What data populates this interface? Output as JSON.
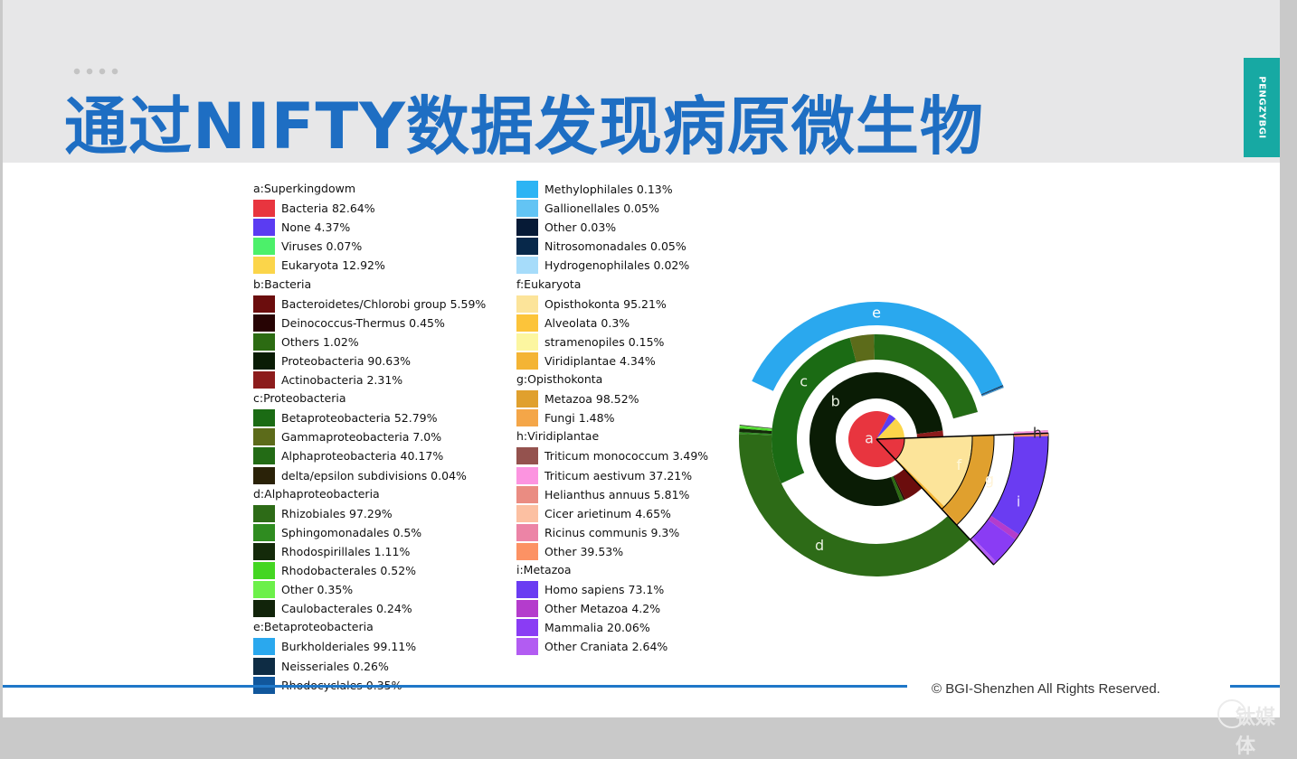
{
  "page": {
    "title": "通过NIFTY数据发现病原微生物",
    "side_tag": "PENGZYBGI",
    "footer": "©  BGI-Shenzhen All Rights Reserved.",
    "watermark": "钛媒体"
  },
  "colors": {
    "title": "#1e6ec3",
    "header_bg": "#e7e7e8",
    "accent_teal": "#17a9a3",
    "rule_blue": "#1f77c8"
  },
  "chart_data": {
    "type": "sunburst",
    "title": "",
    "legend_placement": "left",
    "sections": [
      {
        "key": "a",
        "title": "a:Superkingdowm",
        "items": [
          {
            "name": "Bacteria",
            "value": 82.64,
            "label": "Bacteria 82.64%",
            "color": "#e8353f"
          },
          {
            "name": "None",
            "value": 4.37,
            "label": "None 4.37%",
            "color": "#5b3cf2"
          },
          {
            "name": "Viruses",
            "value": 0.07,
            "label": "Viruses 0.07%",
            "color": "#4cf06a"
          },
          {
            "name": "Eukaryota",
            "value": 12.92,
            "label": "Eukaryota 12.92%",
            "color": "#fbd54a"
          }
        ]
      },
      {
        "key": "b",
        "title": "b:Bacteria",
        "items": [
          {
            "name": "Bacteroidetes/Chlorobi group",
            "value": 5.59,
            "label": "Bacteroidetes/Chlorobi group 5.59%",
            "color": "#6b0d0d"
          },
          {
            "name": "Deinococcus-Thermus",
            "value": 0.45,
            "label": "Deinococcus-Thermus 0.45%",
            "color": "#270404"
          },
          {
            "name": "Others",
            "value": 1.02,
            "label": "Others 1.02%",
            "color": "#2c6b12"
          },
          {
            "name": "Proteobacteria",
            "value": 90.63,
            "label": "Proteobacteria 90.63%",
            "color": "#0a1c05"
          },
          {
            "name": "Actinobacteria",
            "value": 2.31,
            "label": "Actinobacteria 2.31%",
            "color": "#8c1c1c"
          }
        ]
      },
      {
        "key": "c",
        "title": "c:Proteobacteria",
        "items": [
          {
            "name": "Betaproteobacteria",
            "value": 52.79,
            "label": "Betaproteobacteria 52.79%",
            "color": "#1b6b14"
          },
          {
            "name": "Gammaproteobacteria",
            "value": 7.0,
            "label": "Gammaproteobacteria 7.0%",
            "color": "#5c6b1a"
          },
          {
            "name": "Alphaproteobacteria",
            "value": 40.17,
            "label": "Alphaproteobacteria 40.17%",
            "color": "#236b15"
          },
          {
            "name": "delta/epsilon subdivisions",
            "value": 0.04,
            "label": "delta/epsilon subdivisions 0.04%",
            "color": "#2a2208"
          }
        ]
      },
      {
        "key": "d",
        "title": "d:Alphaproteobacteria",
        "items": [
          {
            "name": "Rhizobiales",
            "value": 97.29,
            "label": "Rhizobiales 97.29%",
            "color": "#2d6b17"
          },
          {
            "name": "Sphingomonadales",
            "value": 0.5,
            "label": "Sphingomonadales 0.5%",
            "color": "#2f8c20"
          },
          {
            "name": "Rhodospirillales",
            "value": 1.11,
            "label": "Rhodospirillales 1.11%",
            "color": "#142a0a"
          },
          {
            "name": "Rhodobacterales",
            "value": 0.52,
            "label": "Rhodobacterales 0.52%",
            "color": "#44d622"
          },
          {
            "name": "Other",
            "value": 0.35,
            "label": "Other 0.35%",
            "color": "#6cf04a"
          },
          {
            "name": "Caulobacterales",
            "value": 0.24,
            "label": "Caulobacterales 0.24%",
            "color": "#11240a"
          }
        ]
      },
      {
        "key": "e",
        "title": "e:Betaproteobacteria",
        "items": [
          {
            "name": "Burkholderiales",
            "value": 99.11,
            "label": "Burkholderiales 99.11%",
            "color": "#2aa8ee"
          },
          {
            "name": "Neisseriales",
            "value": 0.26,
            "label": "Neisseriales 0.26%",
            "color": "#0e2c44"
          },
          {
            "name": "Rhodocyclales",
            "value": 0.35,
            "label": "Rhodocyclales 0.35%",
            "color": "#11579c"
          },
          {
            "name": "Methylophilales",
            "value": 0.13,
            "label": "Methylophilales 0.13%",
            "color": "#2cb4f4"
          },
          {
            "name": "Gallionellales",
            "value": 0.05,
            "label": "Gallionellales 0.05%",
            "color": "#63c4f4"
          },
          {
            "name": "Other",
            "value": 0.03,
            "label": "Other 0.03%",
            "color": "#061a36"
          },
          {
            "name": "Nitrosomonadales",
            "value": 0.05,
            "label": "Nitrosomonadales 0.05%",
            "color": "#07284a"
          },
          {
            "name": "Hydrogenophilales",
            "value": 0.02,
            "label": "Hydrogenophilales 0.02%",
            "color": "#a6dcfa"
          }
        ]
      },
      {
        "key": "f",
        "title": "f:Eukaryota",
        "items": [
          {
            "name": "Opisthokonta",
            "value": 95.21,
            "label": "Opisthokonta 95.21%",
            "color": "#fce49a"
          },
          {
            "name": "Alveolata",
            "value": 0.3,
            "label": "Alveolata 0.3%",
            "color": "#fcc43a"
          },
          {
            "name": "stramenopiles",
            "value": 0.15,
            "label": "stramenopiles 0.15%",
            "color": "#fcf6a0"
          },
          {
            "name": "Viridiplantae",
            "value": 4.34,
            "label": "Viridiplantae 4.34%",
            "color": "#f4b434"
          }
        ]
      },
      {
        "key": "g",
        "title": "g:Opisthokonta",
        "items": [
          {
            "name": "Metazoa",
            "value": 98.52,
            "label": "Metazoa 98.52%",
            "color": "#e0a02e"
          },
          {
            "name": "Fungi",
            "value": 1.48,
            "label": "Fungi 1.48%",
            "color": "#f4a648"
          }
        ]
      },
      {
        "key": "h",
        "title": "h:Viridiplantae",
        "items": [
          {
            "name": "Triticum monococcum",
            "value": 3.49,
            "label": "Triticum monococcum 3.49%",
            "color": "#94524e"
          },
          {
            "name": "Triticum aestivum",
            "value": 37.21,
            "label": "Triticum aestivum 37.21%",
            "color": "#fc94e0"
          },
          {
            "name": "Helianthus annuus",
            "value": 5.81,
            "label": "Helianthus annuus 5.81%",
            "color": "#ea8c82"
          },
          {
            "name": "Cicer arietinum",
            "value": 4.65,
            "label": "Cicer arietinum 4.65%",
            "color": "#fcc0a2"
          },
          {
            "name": "Ricinus communis",
            "value": 9.3,
            "label": "Ricinus communis 9.3%",
            "color": "#ec84a6"
          },
          {
            "name": "Other",
            "value": 39.53,
            "label": "Other 39.53%",
            "color": "#fc9264"
          }
        ]
      },
      {
        "key": "i",
        "title": "i:Metazoa",
        "items": [
          {
            "name": "Homo sapiens",
            "value": 73.1,
            "label": "Homo sapiens 73.1%",
            "color": "#6a3cf2"
          },
          {
            "name": "Other Metazoa",
            "value": 4.2,
            "label": "Other Metazoa 4.2%",
            "color": "#b43ccc"
          },
          {
            "name": "Mammalia",
            "value": 20.06,
            "label": "Mammalia 20.06%",
            "color": "#8a3cf4"
          },
          {
            "name": "Other Craniata",
            "value": 2.64,
            "label": "Other Craniata 2.64%",
            "color": "#b25cf2"
          }
        ]
      }
    ]
  }
}
